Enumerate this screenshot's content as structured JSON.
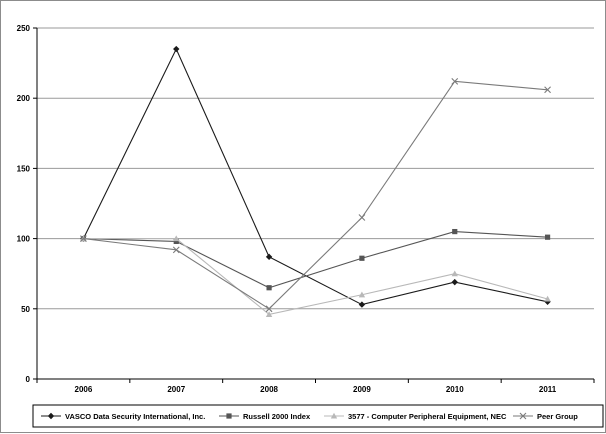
{
  "chart_data": {
    "type": "line",
    "title": "",
    "xlabel": "",
    "ylabel": "",
    "categories": [
      "2006",
      "2007",
      "2008",
      "2009",
      "2010",
      "2011"
    ],
    "ylim": [
      0,
      250
    ],
    "yticks": [
      "0",
      "50",
      "100",
      "150",
      "200",
      "250"
    ],
    "grid": true,
    "legend_position": "bottom",
    "series": [
      {
        "name": "VASCO Data Security International, Inc.",
        "values": [
          100,
          235,
          87,
          53,
          69,
          55
        ],
        "color": "#1a1a1a",
        "marker": "diamond"
      },
      {
        "name": "Russell 2000 Index",
        "values": [
          100,
          98,
          65,
          86,
          105,
          101
        ],
        "color": "#555555",
        "marker": "square"
      },
      {
        "name": "3577 - Computer Peripheral Equipment, NEC",
        "values": [
          100,
          100,
          46,
          60,
          75,
          57
        ],
        "color": "#b8b8b8",
        "marker": "triangle"
      },
      {
        "name": "Peer Group",
        "values": [
          100,
          92,
          50,
          115,
          212,
          206
        ],
        "color": "#7a7a7a",
        "marker": "x"
      }
    ]
  }
}
